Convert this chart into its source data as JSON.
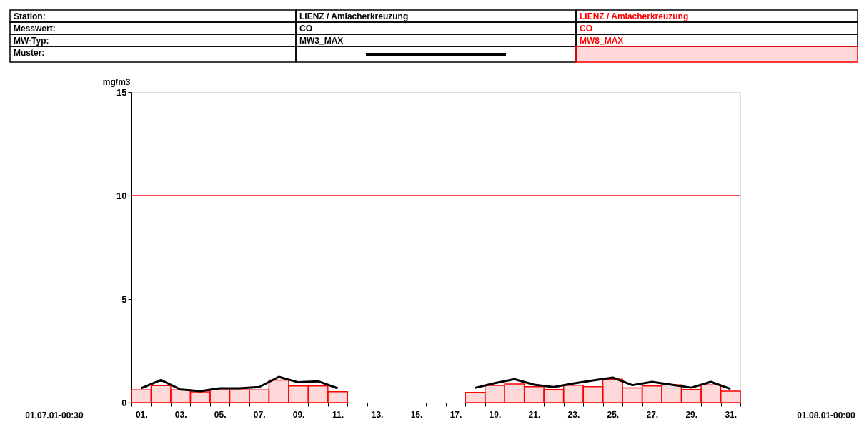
{
  "chart_data": {
    "type": "bar",
    "categories": [
      "01.",
      null,
      "03.",
      null,
      "05.",
      null,
      "07.",
      null,
      "09.",
      null,
      "11.",
      null,
      "13.",
      null,
      "15.",
      null,
      "17.",
      null,
      "19.",
      null,
      "21.",
      null,
      "23.",
      null,
      "25.",
      null,
      "27.",
      null,
      "29.",
      null,
      "31."
    ],
    "series": [
      {
        "name": "MW3_MAX",
        "type": "line",
        "color": "#000000",
        "values": [
          0.69,
          1.09,
          0.63,
          0.55,
          0.69,
          0.69,
          0.75,
          1.24,
          0.98,
          1.03,
          0.69,
          null,
          null,
          null,
          null,
          null,
          null,
          0.71,
          0.94,
          1.13,
          0.86,
          0.75,
          0.92,
          1.07,
          1.21,
          0.84,
          1.0,
          0.86,
          0.72,
          1.0,
          0.66
        ]
      },
      {
        "name": "MW8_MAX",
        "color": "#ff0000",
        "values": [
          0.61,
          0.82,
          0.61,
          0.52,
          0.61,
          0.61,
          0.61,
          1.09,
          0.8,
          0.8,
          0.53,
          null,
          null,
          null,
          null,
          null,
          null,
          0.49,
          0.83,
          0.9,
          0.77,
          0.63,
          0.84,
          0.77,
          1.13,
          0.71,
          0.8,
          0.85,
          0.63,
          0.85,
          0.55
        ]
      }
    ],
    "ylabel": "mg/m3",
    "ylim": [
      0,
      15
    ],
    "yticks": [
      0,
      5,
      10,
      15
    ],
    "grid": false,
    "legend": "top",
    "ref_lines": [
      {
        "axis": "y",
        "value": 10,
        "color": "#ff0000"
      }
    ],
    "annotations": [
      "Station:",
      "LIENZ / Amlacherkreuzung",
      "LIENZ / Amlacherkreuzung",
      "Messwert:",
      "CO",
      "CO",
      "MW-Typ:",
      "Muster:",
      "01.07.01-00:30",
      "01.08.01-00:00"
    ]
  }
}
